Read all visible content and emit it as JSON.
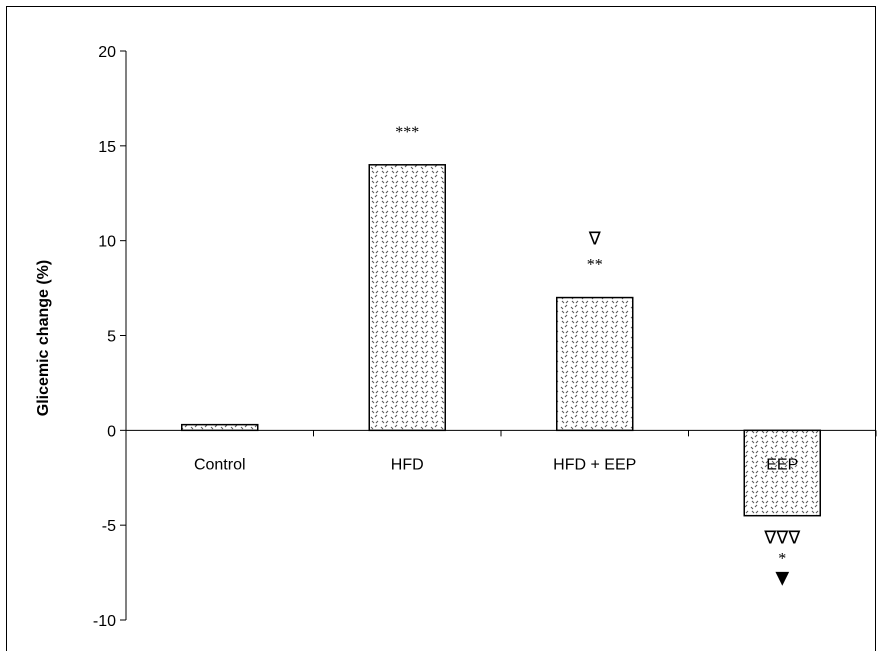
{
  "chart_data": {
    "type": "bar",
    "ylabel": "Glicemic change (%)",
    "ylim": [
      -10,
      20
    ],
    "yticks": [
      20,
      15,
      10,
      5,
      0,
      -5,
      -10
    ],
    "ytick_labels": [
      "20",
      "15",
      "10",
      "5",
      "0",
      "-5",
      "-10"
    ],
    "categories": [
      "Control",
      "HFD",
      "HFD + EEP",
      "EEP"
    ],
    "values": [
      0.3,
      14.0,
      7.0,
      -4.5
    ],
    "bar_fill": "dotted pattern",
    "annotations": [
      {
        "category": "HFD",
        "lines": [
          "***"
        ],
        "position": "above"
      },
      {
        "category": "HFD + EEP",
        "lines": [
          "∇",
          "**"
        ],
        "position": "above"
      },
      {
        "category": "EEP",
        "lines": [
          "∇∇∇",
          "*",
          "▼"
        ],
        "position": "below"
      }
    ]
  }
}
